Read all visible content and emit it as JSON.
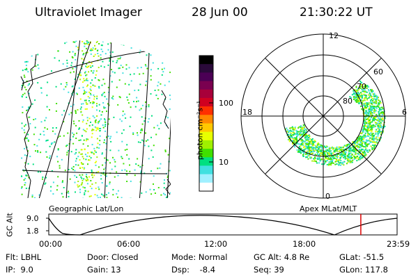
{
  "header": {
    "instrument": "Ultraviolet Imager",
    "date": "28 Jun 00",
    "time": "21:30:22 UT"
  },
  "colorbar": {
    "unit_label": "photon cm⁻²s⁻¹",
    "ticks": [
      "100",
      "10"
    ],
    "colors": [
      "#000000",
      "#2a0a3a",
      "#4b0055",
      "#7a0050",
      "#a8003a",
      "#d00020",
      "#ff3000",
      "#ff8800",
      "#ffc800",
      "#e8ff00",
      "#a0f000",
      "#40e000",
      "#00e080",
      "#40e0e0",
      "#a0f0ff",
      "#ffffff"
    ]
  },
  "left_map": {
    "projection_label": "Geographic Lat/Lon"
  },
  "polar_map": {
    "projection_label": "Apex MLat/MLT",
    "mlt_labels": [
      "12",
      "18",
      "6",
      "0"
    ],
    "mlat_labels": [
      "60",
      "70",
      "80"
    ]
  },
  "altitude_plot": {
    "axis_label": "GC Alt",
    "y_ticks": [
      "9.0",
      "1.8"
    ],
    "x_ticks": [
      "00:00",
      "06:00",
      "12:00",
      "18:00",
      "23:59"
    ],
    "current_time_hours": 21.5,
    "marker_color": "#dd0000"
  },
  "footer": {
    "rows": [
      [
        "Flt: LBHL",
        "Door: Closed",
        "Mode: Normal",
        "GC Alt: 4.8 Re",
        "GLat: -51.5"
      ],
      [
        "IP:  9.0",
        "Gain: 13",
        "Dsp:    -8.4",
        "Seq: 39",
        "GLon: 117.8"
      ]
    ]
  }
}
